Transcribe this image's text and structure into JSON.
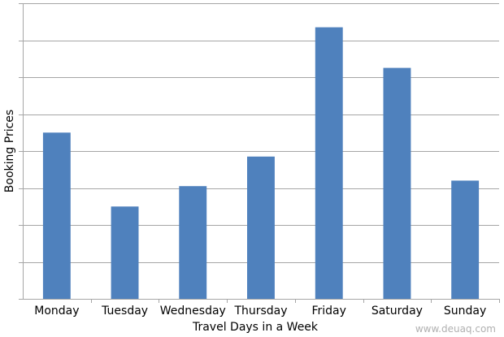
{
  "chart_data": {
    "type": "bar",
    "categories": [
      "Monday",
      "Tuesday",
      "Wednesday",
      "Thursday",
      "Friday",
      "Saturday",
      "Sunday"
    ],
    "values": [
      4.5,
      2.5,
      3.05,
      3.85,
      7.35,
      6.25,
      3.2
    ],
    "xlabel": "Travel  Days in a Week",
    "ylabel": "Booking Prices",
    "ylim": [
      0,
      8
    ],
    "y_tick_count": 9,
    "grid": true,
    "bar_color": "#4f81bd",
    "grid_color": "#a6a6a6",
    "watermark": "www.deuaq.com"
  }
}
